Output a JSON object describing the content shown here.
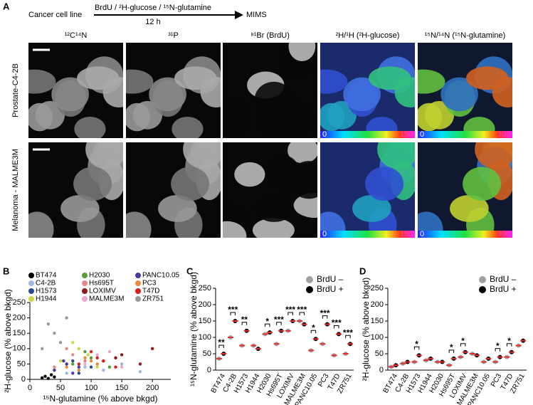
{
  "panel_a": {
    "label": "A",
    "schematic": {
      "start": "Cancer cell line",
      "treatment": "BrdU / ²H-glucose / ¹⁵N-glutamine",
      "duration": "12 h",
      "end": "MIMS"
    },
    "columns": [
      "¹²C¹⁴N",
      "³¹P",
      "⁸¹Br (BrdU)",
      "²H/¹H (²H-glucose)",
      "¹⁵N/¹⁴N (¹⁵N-glutamine)"
    ],
    "rows": [
      "Prostate-C4-2B",
      "Melanoma - MALME3M"
    ],
    "scales": [
      {
        "min": 0,
        "max": 150
      },
      {
        "min": 0,
        "max": 300
      }
    ]
  },
  "chart_data": [
    {
      "type": "scatter",
      "panel": "B",
      "x_label": "¹⁵N-glutamine (% above bkgd)",
      "y_label": "²H-glucose (% above bkgd)",
      "xlim": [
        0,
        230
      ],
      "ylim": [
        0,
        250
      ],
      "xticks": [
        0,
        50,
        100,
        150,
        200
      ],
      "yticks": [
        0,
        50,
        100,
        150,
        200,
        250
      ],
      "series": [
        {
          "name": "BT474",
          "color": "#000000",
          "x": [
            20,
            25,
            30,
            35,
            40
          ],
          "values": [
            5,
            10,
            3,
            15,
            8
          ]
        },
        {
          "name": "C4-2B",
          "color": "#9db8e0",
          "x": [
            60,
            90,
            120,
            150,
            180
          ],
          "values": [
            20,
            40,
            30,
            50,
            25
          ]
        },
        {
          "name": "H1573",
          "color": "#2b4a8c",
          "x": [
            40,
            60,
            80,
            100,
            70
          ],
          "values": [
            30,
            50,
            20,
            40,
            60
          ]
        },
        {
          "name": "H1944",
          "color": "#c8d84a",
          "x": [
            50,
            80,
            110,
            70,
            95
          ],
          "values": [
            60,
            100,
            40,
            120,
            80
          ]
        },
        {
          "name": "H2030",
          "color": "#5a9a3a",
          "x": [
            70,
            100,
            130,
            90,
            120
          ],
          "values": [
            50,
            70,
            40,
            90,
            60
          ]
        },
        {
          "name": "Hs695T",
          "color": "#e08a8a",
          "x": [
            40,
            70,
            90,
            60,
            110
          ],
          "values": [
            40,
            80,
            60,
            100,
            50
          ]
        },
        {
          "name": "LOXIMV",
          "color": "#8b1a1a",
          "x": [
            120,
            150,
            180,
            200,
            140
          ],
          "values": [
            60,
            80,
            50,
            100,
            70
          ]
        },
        {
          "name": "MALME3M",
          "color": "#e8a8d0",
          "x": [
            90,
            120,
            150,
            110,
            130
          ],
          "values": [
            50,
            60,
            40,
            80,
            90
          ]
        },
        {
          "name": "PANC10.05",
          "color": "#4b3a9e",
          "x": [
            40,
            60,
            80,
            55,
            70
          ],
          "values": [
            30,
            50,
            40,
            60,
            20
          ]
        },
        {
          "name": "PC3",
          "color": "#e88a3a",
          "x": [
            60,
            90,
            110,
            80,
            100
          ],
          "values": [
            40,
            70,
            50,
            30,
            60
          ]
        },
        {
          "name": "T47D",
          "color": "#d62020",
          "x": [
            80,
            110,
            140,
            100,
            120
          ],
          "values": [
            50,
            70,
            40,
            90,
            60
          ]
        },
        {
          "name": "ZR751",
          "color": "#999999",
          "x": [
            20,
            40,
            60,
            30,
            50
          ],
          "values": [
            100,
            150,
            200,
            180,
            120
          ]
        }
      ]
    },
    {
      "type": "strip",
      "panel": "C",
      "y_label": "¹⁵N-glutamine (% above bkgd)",
      "ylim": [
        0,
        250
      ],
      "yticks": [
        0,
        50,
        100,
        150,
        200,
        250
      ],
      "median_color": "#e03030",
      "categories": [
        "BT474",
        "C4-2B",
        "H1573",
        "H1944",
        "H2030",
        "Hs695T",
        "LOXIMV",
        "MALME3M",
        "PANC10.05",
        "PC3",
        "T47D",
        "ZR751"
      ],
      "series": [
        {
          "name": "BrdU –",
          "color": "#a0a0a0",
          "values": [
            35,
            100,
            75,
            75,
            110,
            80,
            120,
            150,
            60,
            80,
            45,
            50
          ]
        },
        {
          "name": "BrdU +",
          "color": "#000000",
          "values": [
            50,
            150,
            120,
            65,
            115,
            120,
            150,
            140,
            95,
            140,
            110,
            80
          ]
        }
      ],
      "significance": [
        "**",
        "***",
        "**",
        null,
        "*",
        "***",
        "***",
        "***",
        "*",
        "***",
        "***",
        "***"
      ]
    },
    {
      "type": "strip",
      "panel": "D",
      "y_label": "²H-glucose (% above bkgd)",
      "ylim": [
        0,
        250
      ],
      "yticks": [
        0,
        50,
        100,
        150,
        200,
        250
      ],
      "median_color": "#e03030",
      "categories": [
        "BT474",
        "C4-2B",
        "H1573",
        "H1944",
        "H2030",
        "Hs695T",
        "LOXIMV",
        "MALME3M",
        "PANC10.05",
        "PC3",
        "T47D",
        "ZR751"
      ],
      "series": [
        {
          "name": "BrdU –",
          "color": "#a0a0a0",
          "values": [
            10,
            20,
            25,
            30,
            25,
            15,
            40,
            50,
            25,
            25,
            40,
            75
          ]
        },
        {
          "name": "BrdU +",
          "color": "#000000",
          "values": [
            15,
            25,
            45,
            35,
            25,
            35,
            55,
            45,
            35,
            40,
            55,
            90
          ]
        }
      ],
      "significance": [
        null,
        null,
        "*",
        null,
        null,
        "*",
        "*",
        null,
        null,
        "*",
        "*",
        null
      ]
    }
  ]
}
